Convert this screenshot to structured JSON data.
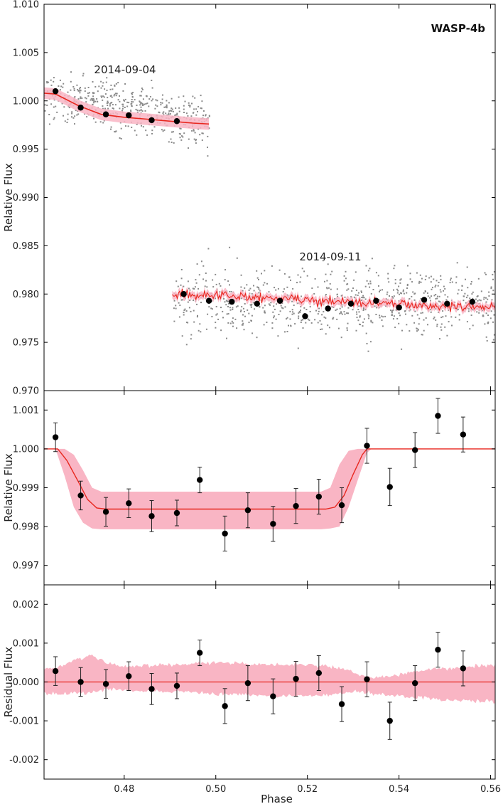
{
  "figure": {
    "colors": {
      "model_line": "#e8271f",
      "uncertainty_band": "#f9b5c4",
      "raw_points": "#8a8a8a",
      "binned_points": "#000000",
      "frame": "#000000"
    }
  },
  "chart_data": [
    {
      "type": "scatter",
      "title": "WASP-4b",
      "xlabel": "",
      "ylabel": "Relative Flux",
      "xlim": [
        0.4625,
        0.561
      ],
      "ylim": [
        0.97,
        1.01
      ],
      "yticks": [
        0.97,
        0.975,
        0.98,
        0.985,
        0.99,
        0.995,
        1.0,
        1.005,
        1.01
      ],
      "ytick_labels": [
        "0.970",
        "0.975",
        "0.980",
        "0.985",
        "0.990",
        "0.995",
        "1.000",
        "1.005",
        "1.010"
      ],
      "grid": false,
      "annotations": [
        "2014-09-04",
        "2014-09-11"
      ],
      "series": [
        {
          "binned_x": [
            0.465,
            0.4705,
            0.476,
            0.481,
            0.486,
            0.4915
          ],
          "binned_y": [
            1.001,
            0.9993,
            0.9986,
            0.9985,
            0.998,
            0.9979
          ],
          "binned_err": [
            0.0003,
            0.0003,
            0.0003,
            0.0003,
            0.0003,
            0.0003
          ],
          "model_x": [
            0.4625,
            0.465,
            0.47,
            0.475,
            0.48,
            0.485,
            0.49,
            0.495,
            0.4985
          ],
          "model_y": [
            1.0008,
            1.0007,
            0.9995,
            0.9986,
            0.9983,
            0.9981,
            0.9979,
            0.9977,
            0.9976
          ],
          "band_halfwidth": 0.0006
        },
        {
          "binned_x": [
            0.493,
            0.4985,
            0.5035,
            0.509,
            0.514,
            0.5195,
            0.5245,
            0.5295,
            0.535,
            0.54,
            0.5455,
            0.5505,
            0.556
          ],
          "binned_y": [
            0.98,
            0.9793,
            0.9792,
            0.979,
            0.9793,
            0.9777,
            0.9785,
            0.979,
            0.9793,
            0.9786,
            0.9794,
            0.979,
            0.9792
          ],
          "binned_err": [
            0.0003,
            0.0003,
            0.0003,
            0.0003,
            0.0003,
            0.0003,
            0.0003,
            0.0003,
            0.0003,
            0.0003,
            0.0003,
            0.0003,
            0.0003
          ],
          "model_x_start": 0.4905,
          "model_x_end": 0.561,
          "model_y_start": 0.98,
          "model_y_end": 0.9786,
          "band_halfwidth": 0.0004
        }
      ]
    },
    {
      "type": "scatter",
      "title": "",
      "xlabel": "",
      "ylabel": "Relative Flux",
      "xlim": [
        0.4625,
        0.561
      ],
      "ylim": [
        0.9965,
        1.0015
      ],
      "yticks": [
        0.997,
        0.998,
        0.999,
        1.0,
        1.001
      ],
      "ytick_labels": [
        "0.997",
        "0.998",
        "0.999",
        "1.000",
        "1.001"
      ],
      "grid": false,
      "series": [
        {
          "binned_x": [
            0.465,
            0.4705,
            0.476,
            0.481,
            0.486,
            0.4915,
            0.4965,
            0.502,
            0.507,
            0.5125,
            0.5175,
            0.5225,
            0.5275,
            0.533,
            0.538,
            0.5435,
            0.5485,
            0.554
          ],
          "binned_y": [
            1.0003,
            0.9988,
            0.99838,
            0.9986,
            0.99827,
            0.99835,
            0.9992,
            0.99782,
            0.99842,
            0.99807,
            0.99853,
            0.99877,
            0.99855,
            1.00008,
            0.99902,
            0.99997,
            1.00085,
            1.00037
          ],
          "binned_err": [
            0.00037,
            0.00037,
            0.00037,
            0.00037,
            0.0004,
            0.00033,
            0.00033,
            0.00045,
            0.00045,
            0.00045,
            0.00045,
            0.00045,
            0.00045,
            0.00045,
            0.00048,
            0.00045,
            0.00045,
            0.00045
          ],
          "model_x": [
            0.4625,
            0.4655,
            0.4675,
            0.47,
            0.472,
            0.474,
            0.476,
            0.524,
            0.526,
            0.528,
            0.53,
            0.532,
            0.533,
            0.561
          ],
          "model_y": [
            1.0,
            1.0,
            0.9997,
            0.99915,
            0.9987,
            0.99848,
            0.99845,
            0.99845,
            0.9985,
            0.9988,
            0.99935,
            0.99985,
            1.0,
            1.0
          ],
          "band_x": [
            0.4625,
            0.465,
            0.467,
            0.469,
            0.471,
            0.473,
            0.475,
            0.477,
            0.523,
            0.525,
            0.527,
            0.529,
            0.531,
            0.533,
            0.534,
            0.561
          ],
          "band_upper": [
            1.0,
            1.0,
            1.0,
            0.99985,
            0.99945,
            0.999,
            0.9989,
            0.9989,
            0.9989,
            0.999,
            0.9996,
            0.99995,
            1.0,
            1.0,
            1.0,
            1.0
          ],
          "band_lower": [
            1.0,
            1.0,
            0.9993,
            0.9985,
            0.9981,
            0.99795,
            0.99793,
            0.99793,
            0.99793,
            0.99795,
            0.998,
            0.9985,
            0.9992,
            0.9999,
            1.0,
            1.0
          ]
        }
      ]
    },
    {
      "type": "scatter",
      "title": "",
      "xlabel": "Phase",
      "ylabel": "Residual Flux",
      "xlim": [
        0.4625,
        0.561
      ],
      "ylim": [
        -0.0025,
        0.0025
      ],
      "yticks": [
        -0.002,
        -0.001,
        0.0,
        0.001,
        0.002
      ],
      "ytick_labels": [
        "-0.002",
        "-0.001",
        "0.000",
        "0.001",
        "0.002"
      ],
      "xticks": [
        0.48,
        0.5,
        0.52,
        0.54,
        0.56
      ],
      "xtick_labels": [
        "0.48",
        "0.50",
        "0.52",
        "0.54",
        "0.56"
      ],
      "grid": false,
      "series": [
        {
          "binned_x": [
            0.465,
            0.4705,
            0.476,
            0.481,
            0.486,
            0.4915,
            0.4965,
            0.502,
            0.507,
            0.5125,
            0.5175,
            0.5225,
            0.5275,
            0.533,
            0.538,
            0.5435,
            0.5485,
            0.554
          ],
          "binned_y": [
            0.00028,
            0.0,
            -5e-05,
            0.00015,
            -0.00018,
            -0.0001,
            0.00075,
            -0.00062,
            -3e-05,
            -0.00037,
            8e-05,
            0.00023,
            -0.00057,
            7e-05,
            -0.001,
            -3e-05,
            0.00083,
            0.00035
          ],
          "binned_err": [
            0.00037,
            0.00037,
            0.00037,
            0.00037,
            0.0004,
            0.00033,
            0.00033,
            0.00045,
            0.00045,
            0.00045,
            0.00045,
            0.00045,
            0.00045,
            0.00045,
            0.00048,
            0.00045,
            0.00045,
            0.00045
          ],
          "model_y": 0.0,
          "band_x": [
            0.4625,
            0.466,
            0.47,
            0.473,
            0.476,
            0.48,
            0.49,
            0.5,
            0.51,
            0.52,
            0.528,
            0.531,
            0.534,
            0.538,
            0.545,
            0.55,
            0.556,
            0.561
          ],
          "band_upper": [
            0.0003,
            0.0004,
            0.0006,
            0.0007,
            0.0005,
            0.0004,
            0.00045,
            0.0005,
            0.00045,
            0.00045,
            0.00035,
            0.0002,
            0.0001,
            0.00015,
            0.0003,
            0.00035,
            0.0004,
            0.00045
          ],
          "band_lower": [
            -0.0003,
            -0.0003,
            -0.0003,
            -0.00025,
            -0.0002,
            -0.0002,
            -0.00025,
            -0.0003,
            -0.00035,
            -0.00035,
            -0.0003,
            -0.00025,
            -0.0003,
            -0.00035,
            -0.0004,
            -0.00045,
            -0.00048,
            -0.0005
          ]
        }
      ]
    }
  ]
}
